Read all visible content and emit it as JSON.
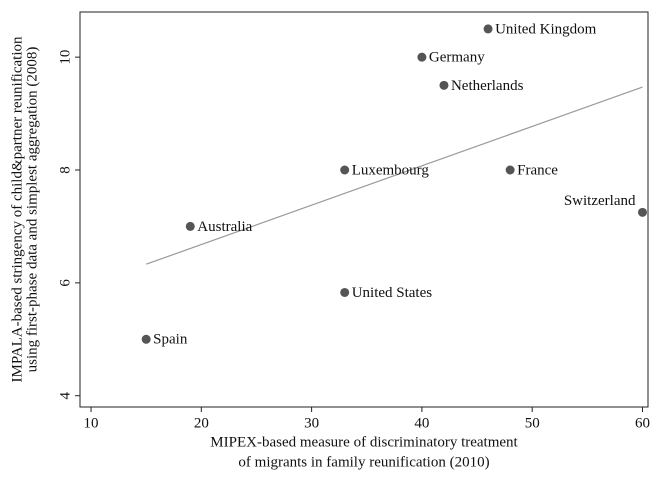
{
  "chart_data": {
    "type": "scatter",
    "x_title": [
      "MIPEX-based measure of discriminatory treatment",
      "of migrants in family reunification (2010)"
    ],
    "y_title": [
      "IMPALA-based stringency of child&partner reunification",
      "using first-phase data and simplest aggregation (2008)"
    ],
    "labels": [
      "United Kingdom",
      "Germany",
      "Netherlands",
      "Luxembourg",
      "France",
      "Switzerland",
      "Australia",
      "United States",
      "Spain"
    ],
    "x": [
      46,
      40,
      42,
      33,
      48,
      60,
      19,
      33,
      15
    ],
    "y": [
      10.5,
      10,
      9.5,
      8,
      8,
      7.25,
      7,
      5.83,
      5
    ],
    "color": "#555555",
    "fit_line": {
      "x": [
        15,
        60
      ],
      "y": [
        6.33,
        9.47
      ],
      "color": "#999999"
    },
    "xlim": [
      9,
      60.5
    ],
    "ylim": [
      3.8,
      10.8
    ],
    "xticks": [
      10,
      20,
      30,
      40,
      50,
      60
    ],
    "yticks": [
      4,
      6,
      8,
      10
    ],
    "grid": false
  }
}
